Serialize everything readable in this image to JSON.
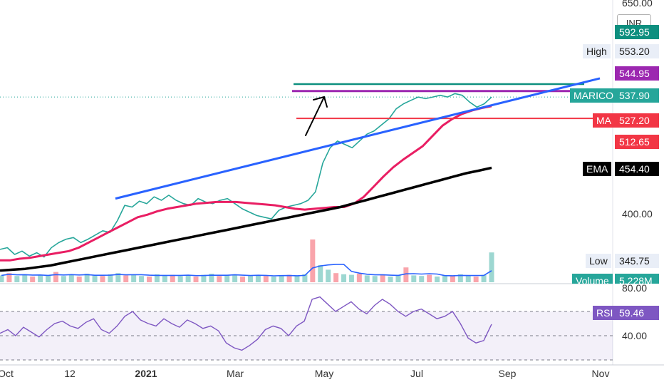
{
  "currency": "INR",
  "chart_data": {
    "type": "line",
    "symbol": "MARICO",
    "x_ticks": [
      "Oct",
      "12",
      "2021",
      "Mar",
      "May",
      "Jul",
      "Sep",
      "Nov"
    ],
    "price_axis_ticks": [
      "650.00",
      "400.00"
    ],
    "price_labels": {
      "high": {
        "name": "High",
        "value": "553.20",
        "color": "#0d8f7f"
      },
      "line_purple": {
        "value": "544.95",
        "color": "#9c27b0"
      },
      "last": {
        "name": "MARICO",
        "value": "537.90",
        "color": "#26a69a"
      },
      "ma": {
        "name": "MA",
        "value": "527.20",
        "color": "#f23645"
      },
      "line_red": {
        "value": "512.65",
        "color": "#f23645"
      },
      "ema": {
        "name": "EMA",
        "value": "454.40",
        "color": "#000000"
      },
      "low": {
        "name": "Low",
        "value": "345.75"
      },
      "volume": {
        "name": "Volume",
        "value": "5.228M",
        "color": "#26a69a"
      },
      "top_teal": {
        "value": "592.95",
        "color": "#0d8f7f"
      }
    },
    "series": [
      {
        "name": "MARICO",
        "values": [
          358,
          360,
          352,
          356,
          350,
          354,
          349,
          360,
          366,
          370,
          372,
          366,
          370,
          375,
          380,
          378,
          392,
          410,
          408,
          415,
          412,
          420,
          416,
          422,
          416,
          412,
          410,
          418,
          414,
          412,
          416,
          418,
          412,
          406,
          402,
          398,
          396,
          394,
          404,
          408,
          410,
          412,
          416,
          426,
          460,
          478,
          486,
          482,
          478,
          486,
          494,
          498,
          505,
          512,
          524,
          530,
          534,
          538,
          536,
          538,
          540,
          538,
          542,
          540,
          532,
          526,
          530,
          537.9
        ]
      },
      {
        "name": "MA",
        "values": [
          345,
          345,
          347,
          348,
          350,
          352,
          354,
          356,
          360,
          366,
          372,
          378,
          384,
          390,
          396,
          399,
          403,
          406,
          408,
          410,
          412,
          413,
          414,
          414,
          414,
          413,
          412,
          411,
          410,
          408,
          406,
          405,
          406,
          407,
          408,
          408,
          412,
          420,
          432,
          444,
          455,
          464,
          472,
          480,
          492,
          504,
          512,
          518,
          522,
          525,
          527.2
        ]
      },
      {
        "name": "EMA",
        "values": [
          333,
          334,
          335,
          337,
          339,
          342,
          345,
          348,
          351,
          354,
          357,
          360,
          363,
          366,
          369,
          372,
          375,
          378,
          381,
          384,
          387,
          390,
          393,
          396,
          399,
          402,
          405,
          408,
          412,
          416,
          420,
          424,
          428,
          432,
          436,
          440,
          444,
          448,
          451,
          454.4
        ]
      }
    ],
    "trend_line_value_start": 418,
    "trend_line_value_end": 560,
    "rsi": {
      "name": "RSI",
      "value": "59.46",
      "ticks": [
        "80.00",
        "40.00"
      ],
      "values": [
        52,
        55,
        50,
        57,
        53,
        49,
        55,
        60,
        62,
        58,
        56,
        61,
        64,
        55,
        52,
        58,
        66,
        70,
        63,
        60,
        58,
        64,
        60,
        57,
        63,
        60,
        56,
        58,
        54,
        44,
        40,
        38,
        42,
        47,
        55,
        58,
        56,
        50,
        58,
        62,
        80,
        82,
        76,
        70,
        74,
        78,
        72,
        68,
        75,
        80,
        76,
        70,
        66,
        70,
        72,
        68,
        64,
        66,
        70,
        60,
        48,
        44,
        46,
        59.46
      ]
    },
    "volume": {
      "values": [
        1.2,
        1.6,
        1.1,
        1.4,
        1.0,
        1.3,
        1.2,
        1.8,
        1.1,
        1.3,
        1.0,
        1.5,
        1.2,
        1.1,
        1.4,
        1.6,
        1.2,
        1.3,
        1.1,
        1.0,
        1.4,
        1.2,
        1.3,
        1.1,
        1.2,
        1.0,
        1.3,
        1.5,
        1.1,
        1.2,
        1.4,
        1.0,
        1.2,
        1.3,
        1.1,
        1.0,
        1.2,
        1.3,
        1.1,
        1.4,
        7.5,
        3.0,
        2.2,
        1.6,
        1.4,
        1.3,
        1.5,
        1.2,
        1.1,
        1.4,
        1.0,
        1.3,
        2.6,
        1.2,
        1.1,
        1.3,
        1.0,
        1.2,
        1.1,
        1.4,
        1.2,
        1.0,
        1.3,
        5.228
      ]
    }
  }
}
